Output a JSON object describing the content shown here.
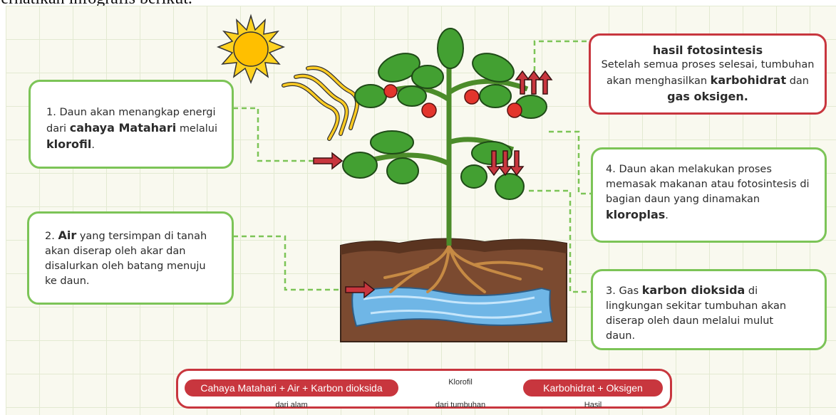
{
  "intro": "Perhatikan infografis berikut.",
  "steps": [
    {
      "number": "1.",
      "text": [
        "Daun akan menangkap energi dari",
        "cahaya Matahari",
        "melalui",
        "klorofil",
        "."
      ]
    },
    {
      "number": "2.",
      "text": [
        "Air",
        "yang tersimpan di tanah akan diserap oleh akar dan disalurkan oleh batang menuju ke daun."
      ]
    },
    {
      "number": "3.",
      "text": [
        "Gas",
        "karbon dioksida",
        "di lingkungan sekitar tumbuhan akan diserap oleh daun melalui mulut daun."
      ]
    },
    {
      "number": "4.",
      "text": [
        "Daun akan melakukan proses memasak makanan atau fotosintesis di bagian daun yang dinamakan",
        "kloroplas",
        "."
      ]
    }
  ],
  "result": {
    "title": "hasil fotosintesis",
    "text": [
      "Setelah semua proses selesai, tumbuhan akan menghasilkan",
      "karbohidrat",
      "dan",
      "gas oksigen."
    ]
  },
  "equation": {
    "inputs": "Cahaya Matahari + Air + Karbon dioksida",
    "inputs_note": "dari alam",
    "catalyst": "Klorofil",
    "catalyst_note": "dari tumbuhan",
    "outputs": "Karbohidrat + Oksigen",
    "outputs_note": "Hasil"
  }
}
